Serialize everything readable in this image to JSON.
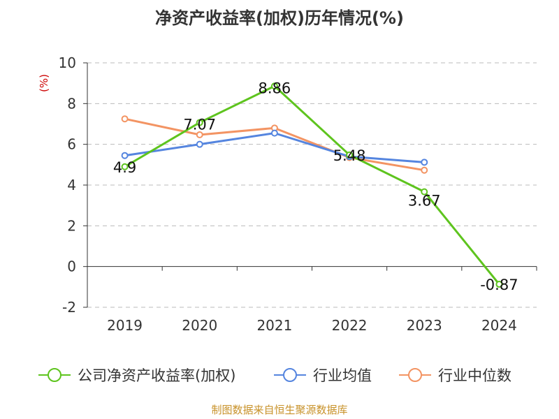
{
  "chart_data": {
    "type": "line",
    "title": "净资产收益率(加权)历年情况(%)",
    "ylabel": "(%)",
    "categories": [
      "2019",
      "2020",
      "2021",
      "2022",
      "2023",
      "2024"
    ],
    "ylim": [
      -2,
      10
    ],
    "yticks": [
      -2,
      0,
      2,
      4,
      6,
      8,
      10
    ],
    "grid": true,
    "legend_position": "bottom",
    "series": [
      {
        "name": "公司净资产收益率(加权)",
        "color": "#5ec41e",
        "values": [
          4.9,
          7.07,
          8.86,
          5.48,
          3.67,
          -0.87
        ],
        "labels": [
          "4.9",
          "7.07",
          "8.86",
          "5.48",
          "3.67",
          "-0.87"
        ]
      },
      {
        "name": "行业均值",
        "color": "#5585df",
        "values": [
          5.45,
          6.0,
          6.55,
          5.4,
          5.12,
          null
        ]
      },
      {
        "name": "行业中位数",
        "color": "#f39463",
        "values": [
          7.25,
          6.47,
          6.8,
          5.35,
          4.73,
          null
        ]
      }
    ]
  },
  "footer": {
    "source": "制图数据来自恒生聚源数据库"
  }
}
